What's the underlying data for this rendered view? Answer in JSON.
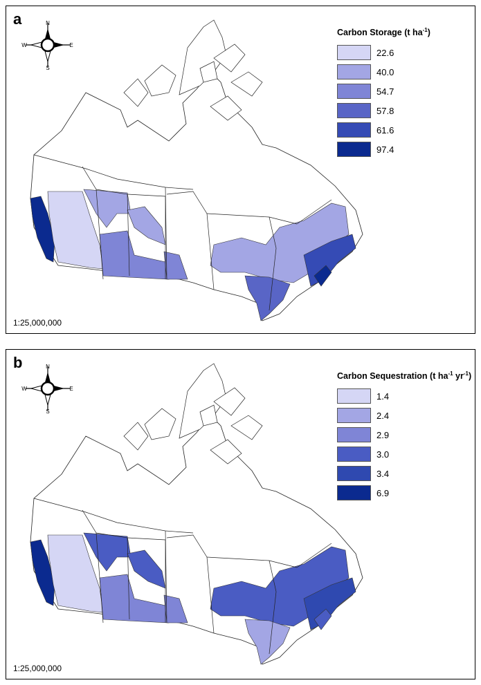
{
  "panels": [
    {
      "letter": "a",
      "legend_title": "Carbon Storage (t ha",
      "legend_title_sup": "-1",
      "legend_title_end": ")",
      "legend": [
        {
          "label": "22.6",
          "color": "#d5d6f5"
        },
        {
          "label": "40.0",
          "color": "#a3a6e4"
        },
        {
          "label": "54.7",
          "color": "#7f85d6"
        },
        {
          "label": "57.8",
          "color": "#5965c6"
        },
        {
          "label": "61.6",
          "color": "#354bb5"
        },
        {
          "label": "97.4",
          "color": "#0b2a8f"
        }
      ],
      "regions": {
        "pacific": "97.4",
        "montane": "22.6",
        "boreal_west": "40.0",
        "prairie_south": "54.7",
        "parkland": "40.0",
        "mixedwood_man": "54.7",
        "boreal_shield": "40.0",
        "great_lakes": "57.8",
        "maritime": "61.6",
        "acadian": "97.4"
      },
      "scale": "1:25,000,000"
    },
    {
      "letter": "b",
      "legend_title": "Carbon Sequestration (t ha",
      "legend_title_sup": "-1",
      "legend_title_mid": " yr",
      "legend_title_sup2": "-1",
      "legend_title_end": ")",
      "legend": [
        {
          "label": "1.4",
          "color": "#d5d6f5"
        },
        {
          "label": "2.4",
          "color": "#a3a6e4"
        },
        {
          "label": "2.9",
          "color": "#7f85d6"
        },
        {
          "label": "3.0",
          "color": "#4a5cc3"
        },
        {
          "label": "3.4",
          "color": "#2f49b0"
        },
        {
          "label": "6.9",
          "color": "#0b2a8f"
        }
      ],
      "regions": {
        "pacific": "6.9",
        "montane": "1.4",
        "boreal_west": "3.0",
        "prairie_south": "2.9",
        "parkland": "3.0",
        "mixedwood_man": "2.9",
        "boreal_shield": "3.0",
        "great_lakes": "2.4",
        "maritime": "3.4",
        "acadian": "3.0"
      },
      "scale": "1:25,000,000"
    }
  ],
  "compass": {
    "n": "N",
    "s": "S",
    "e": "E",
    "w": "W"
  }
}
